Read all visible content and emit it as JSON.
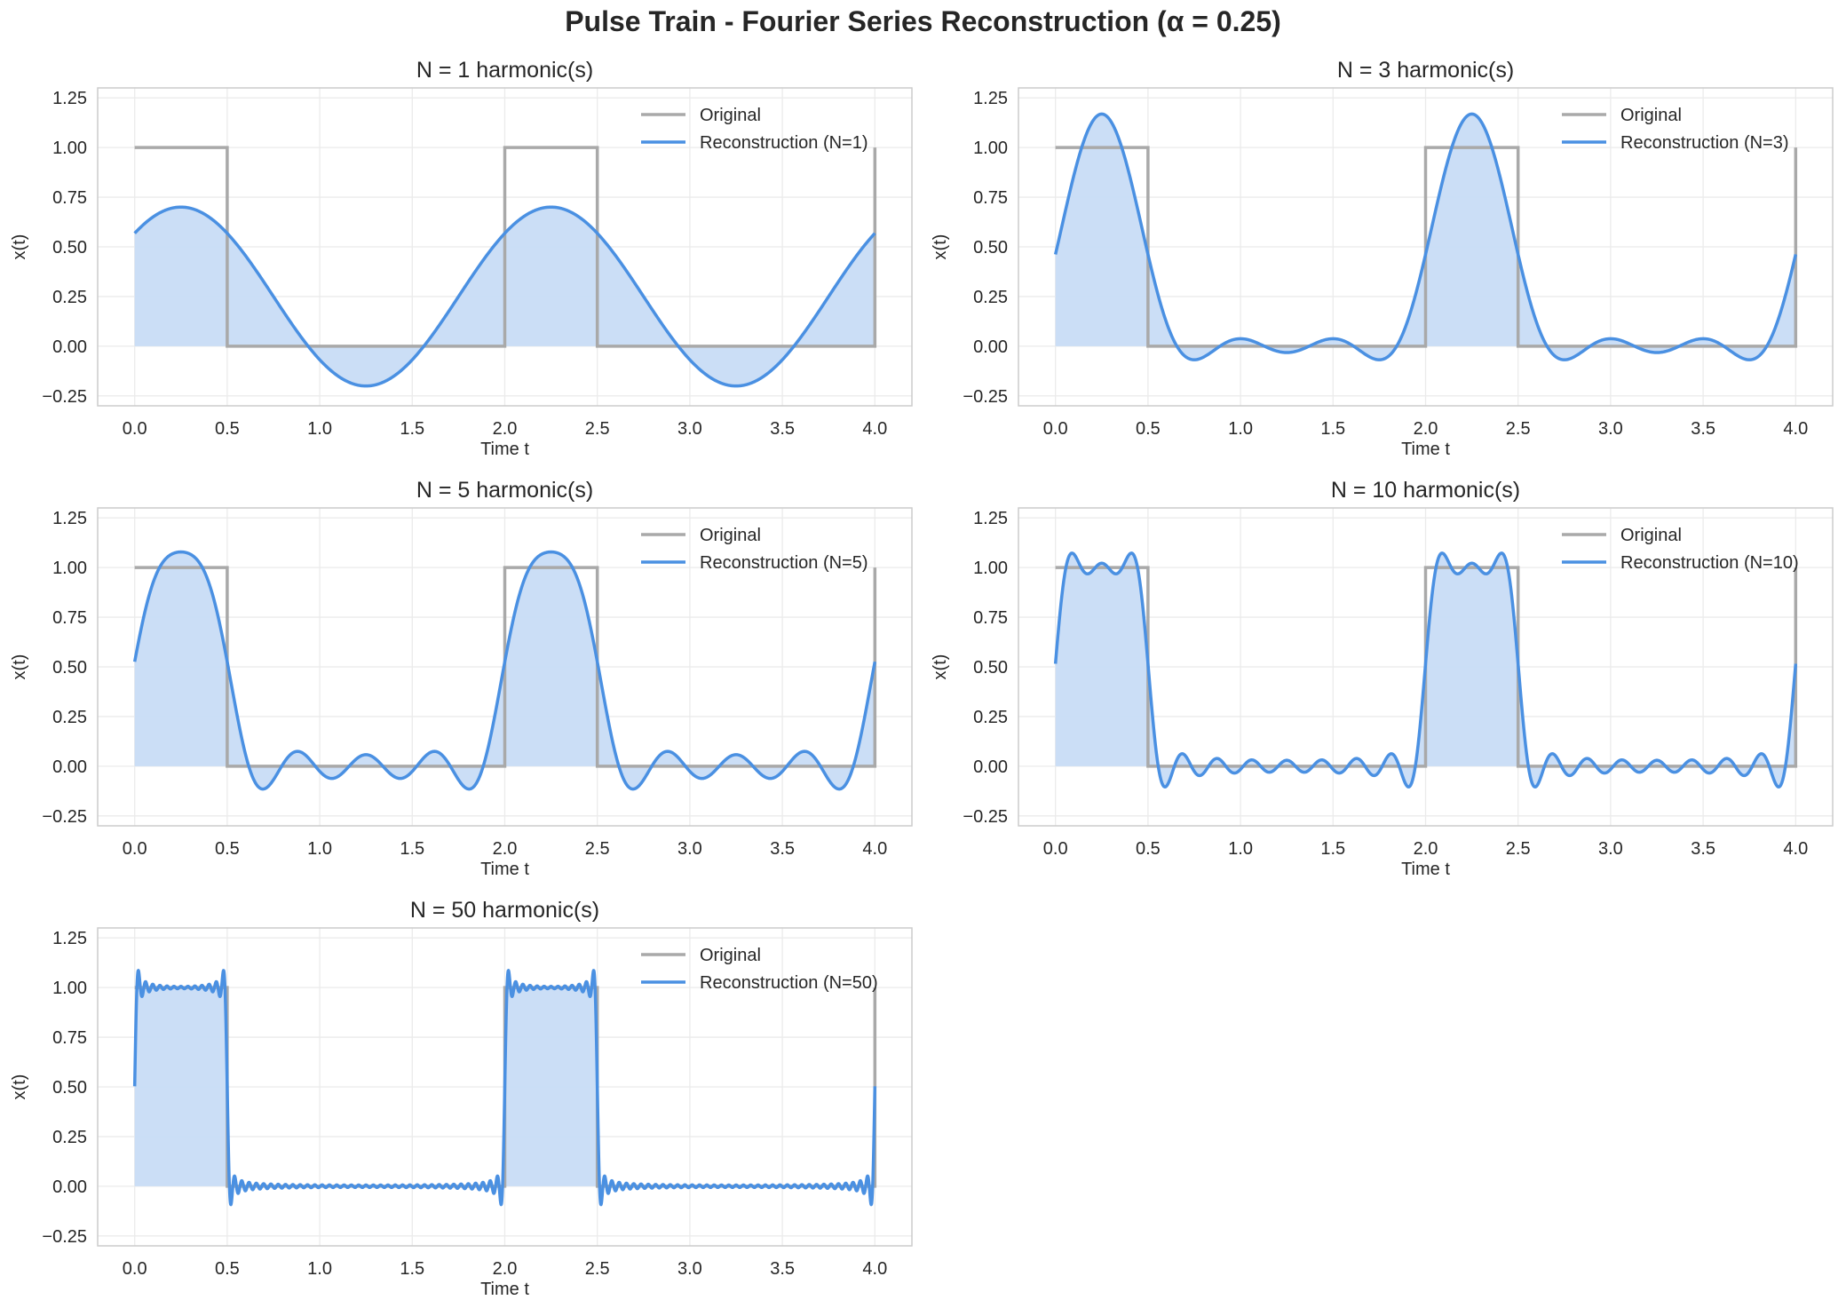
{
  "suptitle": "Pulse Train - Fourier Series Reconstruction (α = 0.25)",
  "colors": {
    "original": "#a9a9a9",
    "reconstruction": "#4a90e2",
    "fill": "#c8dcf5",
    "grid": "#ebebeb",
    "frame": "#cccccc",
    "text": "#262626"
  },
  "chart_data": [
    {
      "type": "line",
      "title": "N = 1 harmonic(s)",
      "xlabel": "Time t",
      "ylabel": "x(t)",
      "xlim": [
        -0.2,
        4.2
      ],
      "ylim": [
        -0.3,
        1.3
      ],
      "xticks": [
        "0.0",
        "0.5",
        "1.0",
        "1.5",
        "2.0",
        "2.5",
        "3.0",
        "3.5",
        "4.0"
      ],
      "yticks": [
        "−0.25",
        "0.00",
        "0.25",
        "0.50",
        "0.75",
        "1.00",
        "1.25"
      ],
      "grid": true,
      "legend": "top-right",
      "legend_entries": [
        "Original",
        "Reconstruction (N=1)"
      ],
      "harmonics": 1,
      "period": 2,
      "alpha": 0.25,
      "t_range": [
        0,
        4
      ],
      "series": [
        {
          "name": "Original",
          "x": [
            0,
            0.5,
            0.5,
            2,
            2,
            2.5,
            2.5,
            4,
            4
          ],
          "y": [
            1,
            1,
            0,
            0,
            1,
            1,
            0,
            0,
            1
          ]
        },
        {
          "name": "Reconstruction (N=1)",
          "x": [
            0,
            0.25,
            0.5,
            1.0,
            1.25,
            1.5,
            2.0,
            2.25,
            2.5,
            3.0,
            3.25,
            3.5,
            4.0
          ],
          "y": [
            0.57,
            0.7,
            0.57,
            0.03,
            -0.2,
            0.03,
            0.57,
            0.7,
            0.57,
            0.03,
            -0.2,
            0.03,
            0.57
          ]
        }
      ]
    },
    {
      "type": "line",
      "title": "N = 3 harmonic(s)",
      "xlabel": "Time t",
      "ylabel": "x(t)",
      "xlim": [
        -0.2,
        4.2
      ],
      "ylim": [
        -0.3,
        1.3
      ],
      "xticks": [
        "0.0",
        "0.5",
        "1.0",
        "1.5",
        "2.0",
        "2.5",
        "3.0",
        "3.5",
        "4.0"
      ],
      "yticks": [
        "−0.25",
        "0.00",
        "0.25",
        "0.50",
        "0.75",
        "1.00",
        "1.25"
      ],
      "grid": true,
      "legend": "top-right",
      "legend_entries": [
        "Original",
        "Reconstruction (N=3)"
      ],
      "harmonics": 3,
      "period": 2,
      "alpha": 0.25,
      "t_range": [
        0,
        4
      ],
      "series": [
        {
          "name": "Original",
          "x": [
            0,
            0.5,
            0.5,
            2,
            2,
            2.5,
            2.5,
            4,
            4
          ],
          "y": [
            1,
            1,
            0,
            0,
            1,
            1,
            0,
            0,
            1
          ]
        },
        {
          "name": "Reconstruction (N=3)",
          "x": [
            0,
            0.25,
            0.5,
            0.75,
            1.0,
            1.25,
            1.5,
            1.75,
            2.0,
            2.25,
            2.5,
            2.75,
            3.0,
            3.25,
            3.5,
            3.75,
            4.0
          ],
          "y": [
            0.47,
            1.16,
            0.47,
            -0.07,
            0.04,
            -0.03,
            0.04,
            -0.07,
            0.47,
            1.16,
            0.47,
            -0.07,
            0.04,
            -0.03,
            0.04,
            -0.07,
            0.47
          ]
        }
      ]
    },
    {
      "type": "line",
      "title": "N = 5 harmonic(s)",
      "xlabel": "Time t",
      "ylabel": "x(t)",
      "xlim": [
        -0.2,
        4.2
      ],
      "ylim": [
        -0.3,
        1.3
      ],
      "xticks": [
        "0.0",
        "0.5",
        "1.0",
        "1.5",
        "2.0",
        "2.5",
        "3.0",
        "3.5",
        "4.0"
      ],
      "yticks": [
        "−0.25",
        "0.00",
        "0.25",
        "0.50",
        "0.75",
        "1.00",
        "1.25"
      ],
      "grid": true,
      "legend": "top-right",
      "legend_entries": [
        "Original",
        "Reconstruction (N=5)"
      ],
      "harmonics": 5,
      "period": 2,
      "alpha": 0.25,
      "t_range": [
        0,
        4
      ],
      "series": [
        {
          "name": "Original",
          "x": [
            0,
            0.5,
            0.5,
            2,
            2,
            2.5,
            2.5,
            4,
            4
          ],
          "y": [
            1,
            1,
            0,
            0,
            1,
            1,
            0,
            0,
            1
          ]
        },
        {
          "name": "Reconstruction (N=5)",
          "x": [
            0,
            0.25,
            0.5,
            0.68,
            0.87,
            1.06,
            1.25,
            1.44,
            1.63,
            1.82,
            2.0,
            2.25,
            2.5,
            2.68,
            2.87,
            3.06,
            3.25,
            3.44,
            3.63,
            3.82,
            4.0
          ],
          "y": [
            0.53,
            1.08,
            0.53,
            -0.11,
            0.07,
            -0.06,
            0.06,
            -0.06,
            0.07,
            -0.11,
            0.53,
            1.08,
            0.53,
            -0.11,
            0.07,
            -0.06,
            0.06,
            -0.06,
            0.07,
            -0.11,
            0.53
          ]
        }
      ]
    },
    {
      "type": "line",
      "title": "N = 10 harmonic(s)",
      "xlabel": "Time t",
      "ylabel": "x(t)",
      "xlim": [
        -0.2,
        4.2
      ],
      "ylim": [
        -0.3,
        1.3
      ],
      "xticks": [
        "0.0",
        "0.5",
        "1.0",
        "1.5",
        "2.0",
        "2.5",
        "3.0",
        "3.5",
        "4.0"
      ],
      "yticks": [
        "−0.25",
        "0.00",
        "0.25",
        "0.50",
        "0.75",
        "1.00",
        "1.25"
      ],
      "grid": true,
      "legend": "top-right",
      "legend_entries": [
        "Original",
        "Reconstruction (N=10)"
      ],
      "harmonics": 10,
      "period": 2,
      "alpha": 0.25,
      "t_range": [
        0,
        4
      ],
      "series": [
        {
          "name": "Original",
          "x": [
            0,
            0.5,
            0.5,
            2,
            2,
            2.5,
            2.5,
            4,
            4
          ],
          "y": [
            1,
            1,
            0,
            0,
            1,
            1,
            0,
            0,
            1
          ]
        },
        {
          "name": "Reconstruction (N=10)",
          "x": [
            0,
            0.08,
            0.17,
            0.25,
            0.33,
            0.42,
            0.5,
            0.59,
            2.0,
            2.08,
            2.25,
            2.42,
            2.5,
            2.59,
            4.0
          ],
          "y": [
            0.52,
            1.07,
            1.01,
            1.02,
            1.01,
            1.07,
            0.52,
            -0.1,
            0.52,
            1.07,
            1.02,
            1.07,
            0.52,
            -0.1,
            0.52
          ]
        }
      ]
    },
    {
      "type": "line",
      "title": "N = 50 harmonic(s)",
      "xlabel": "Time t",
      "ylabel": "x(t)",
      "xlim": [
        -0.2,
        4.2
      ],
      "ylim": [
        -0.3,
        1.3
      ],
      "xticks": [
        "0.0",
        "0.5",
        "1.0",
        "1.5",
        "2.0",
        "2.5",
        "3.0",
        "3.5",
        "4.0"
      ],
      "yticks": [
        "−0.25",
        "0.00",
        "0.25",
        "0.50",
        "0.75",
        "1.00",
        "1.25"
      ],
      "grid": true,
      "legend": "top-right",
      "legend_entries": [
        "Original",
        "Reconstruction (N=50)"
      ],
      "harmonics": 50,
      "period": 2,
      "alpha": 0.25,
      "t_range": [
        0,
        4
      ],
      "series": [
        {
          "name": "Original",
          "x": [
            0,
            0.5,
            0.5,
            2,
            2,
            2.5,
            2.5,
            4,
            4
          ],
          "y": [
            1,
            1,
            0,
            0,
            1,
            1,
            0,
            0,
            1
          ]
        },
        {
          "name": "Reconstruction (N=50)",
          "x": [
            0,
            0.02,
            0.25,
            0.48,
            0.5,
            0.52,
            2.0,
            2.02,
            2.25,
            2.48,
            2.5,
            2.52,
            4.0
          ],
          "y": [
            0.5,
            1.09,
            1.0,
            1.09,
            0.5,
            -0.09,
            0.5,
            1.09,
            1.0,
            1.09,
            0.5,
            -0.09,
            0.5
          ]
        }
      ]
    }
  ]
}
